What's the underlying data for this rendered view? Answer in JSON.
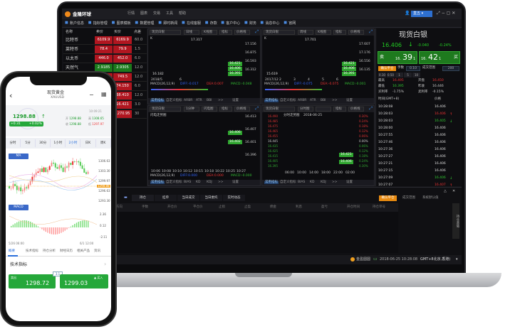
{
  "app": {
    "name": "金隆环球",
    "menu": [
      "行情",
      "图表",
      "交易",
      "工具",
      "帮助"
    ],
    "account": "直五"
  },
  "toolbar": [
    "账户信息",
    "指标管理",
    "图表模板",
    "数据管理",
    "即时新闻",
    "在线客服",
    "存款",
    "客户中心",
    "财务",
    "消息中心",
    "官网"
  ],
  "watchlist": {
    "headers": [
      "名称",
      "卖价",
      "买价",
      "点差"
    ],
    "rows": [
      {
        "name": "比特币",
        "sell": "6109.9",
        "buy": "6169.9",
        "spread": "60.0",
        "color": "red"
      },
      {
        "name": "莱特币",
        "sell": "78.4",
        "buy": "79.9",
        "spread": "1.5",
        "color": "red"
      },
      {
        "name": "以太币",
        "sell": "446.0",
        "buy": "452.0",
        "spread": "6.0",
        "color": "red"
      },
      {
        "name": "天然气",
        "sell": "2.9185",
        "buy": "2.9305",
        "spread": "12.0",
        "color": "green"
      },
      {
        "name": "",
        "sell": "",
        "buy": "749.5",
        "spread": "12.0",
        "color": "red"
      },
      {
        "name": "",
        "sell": "",
        "buy": "74.150",
        "spread": "6.0",
        "color": "red"
      },
      {
        "name": "",
        "sell": "",
        "buy": "68.410",
        "spread": "12.0",
        "color": "red"
      },
      {
        "name": "",
        "sell": "",
        "buy": "16.421",
        "spread": "3.0",
        "color": "red"
      },
      {
        "name": "",
        "sell": "",
        "buy": "1270.95",
        "spread": "30",
        "color": "red"
      }
    ]
  },
  "charts": [
    {
      "product": "现货白银",
      "period": "日线",
      "type": "K线图",
      "indicator": "指标",
      "line": "价格线",
      "label": "K",
      "high": "17.317",
      "low": "16.182",
      "axis": [
        "17.156",
        "16.875",
        "16.593",
        "16.312"
      ],
      "tags": [
        "16.421",
        "16.406",
        "16.391"
      ],
      "dates": [
        "2018/5",
        "6"
      ],
      "macd": "MACD(26,12,9)",
      "diff": "DIFF:-0.017",
      "dea": "DEA:0.007",
      "macdv": "MACD:-0.048",
      "tabs": [
        "常用指标",
        "自定义指标",
        "ARBR",
        "ATR",
        "BBI",
        ">>",
        "设置"
      ]
    },
    {
      "product": "现货白银",
      "period": "周线",
      "type": "K线图",
      "indicator": "指标",
      "line": "价格线",
      "label": "K",
      "high": "17.701",
      "low": "15.619",
      "axis": [
        "17.607",
        "17.176",
        "16.556",
        "16.135"
      ],
      "tags": [
        "16.421",
        "16.406",
        "16.391"
      ],
      "dates": [
        "2017/12",
        "2",
        "3",
        "4",
        "5",
        "6"
      ],
      "macd": "MACD(26,12,9)",
      "diff": "DIFF:-0.075",
      "dea": "DEA:-0.075",
      "macdv": "MACD:-0.001",
      "tabs": [
        "常用指标",
        "自定义指标",
        "ARBR",
        "ATR",
        "BBI",
        ">>",
        "设置"
      ]
    },
    {
      "product": "现货白银",
      "period": "1分钟",
      "type": "闪电图",
      "indicator": "指标",
      "line": "价格线",
      "label": "闪电走势图",
      "axis": [
        "16.413",
        "16.407",
        "16.401",
        "16.396"
      ],
      "tags": [
        "16.406",
        "16.402"
      ],
      "dates": [
        "10:06",
        "10:08",
        "10:10",
        "10:12",
        "10:15",
        "10:18",
        "10:22",
        "10:25",
        "10:27"
      ],
      "macd": "MACD(26,12,9)",
      "diff": "DIFF:0.000",
      "dea": "DEA:0.000",
      "macdv": "MACD:-0.000",
      "tabs": [
        "常用指标",
        "自定义指标",
        "BIAS",
        "KD",
        "KDJ",
        ">>",
        "设置"
      ]
    },
    {
      "product": "现货白银",
      "period": "分时图",
      "type": "",
      "indicator": "指标",
      "line": "价格线",
      "label": "分时走势图",
      "date": "2018-06-25",
      "axis": [
        "16.490",
        "16.485",
        "16.475",
        "16.465",
        "16.455",
        "16.445",
        "16.435",
        "16.425",
        "16.415",
        "16.405",
        "16.395"
      ],
      "pct": [
        "0.30%",
        "0.24%",
        "0.18%",
        "0.12%",
        "0.06%",
        "0.00%",
        "0.06%",
        "0.12%",
        "0.18%",
        "0.24%",
        "0.30%"
      ],
      "tags": [
        "16.421",
        "16.406"
      ],
      "dates": [
        "06:00",
        "10:00",
        "14:00",
        "18:00",
        "22:00",
        "02:00"
      ],
      "tabs": [
        "常用指标",
        "自定义指标",
        "BIAS",
        "KD",
        "KDJ",
        ">>",
        "设置"
      ]
    }
  ],
  "quote": {
    "title": "现货白银",
    "price": "16.406",
    "change": "-0.040",
    "pct": "-0.24%",
    "sell_label": "卖",
    "sell_pre": "16.",
    "sell_big": "39",
    "sell_sup": "1",
    "buy_label": "买",
    "buy_pre": "16.",
    "buy_big": "42",
    "buy_sup": "1",
    "close_btn": "确认平仓",
    "lots_label": "手数",
    "lots": "0.10",
    "range_label": "成交范围",
    "range": "200",
    "quick": [
      "0.10",
      "0.50",
      "1",
      "5",
      "10"
    ],
    "stats": [
      {
        "k": "最高",
        "v": "16.495"
      },
      {
        "k": "开盘",
        "v": "16.450"
      },
      {
        "k": "最低",
        "v": "16.395"
      },
      {
        "k": "昨收",
        "v": "16.446"
      },
      {
        "k": "买利率",
        "v": "-1.75%"
      },
      {
        "k": "卖利率",
        "v": "-0.15%"
      }
    ],
    "ticks_header": [
      "时间(GMT+8)",
      "价格"
    ],
    "ticks": [
      [
        "10:28:08",
        "16.406",
        ""
      ],
      [
        "10:28:03",
        "16.406",
        "up"
      ],
      [
        "10:28:03",
        "16.405",
        "down"
      ],
      [
        "10:28:00",
        "16.406",
        ""
      ],
      [
        "10:27:55",
        "16.406",
        ""
      ],
      [
        "10:27:46",
        "16.406",
        ""
      ],
      [
        "10:27:36",
        "16.406",
        ""
      ],
      [
        "10:27:27",
        "16.406",
        ""
      ],
      [
        "10:27:21",
        "16.406",
        ""
      ],
      [
        "10:27:15",
        "16.406",
        ""
      ],
      [
        "10:27:09",
        "16.406",
        "down"
      ],
      [
        "10:27:07",
        "16.407",
        "up"
      ]
    ]
  },
  "positions": {
    "tabs": [
      "持仓",
      "挂单",
      "当日成交",
      "当日委托",
      "实时动态"
    ],
    "right": [
      "确认平仓",
      "成交范围",
      "系统默认值"
    ],
    "headers": [
      "产品",
      "方向",
      "手数",
      "开仓价",
      "平仓价",
      "止损",
      "止盈",
      "佣金",
      "利息",
      "盈亏",
      "开仓时间",
      "持仓单号"
    ],
    "side": "持仓基础"
  },
  "status": {
    "service": "金盈圆圆",
    "datetime": "2018-06-25 10:28:08",
    "tz": "GMT+8北京,香港)"
  },
  "phone": {
    "title": "现货黄金",
    "symbol": "XAUUSD",
    "price": "1298.88",
    "chg": "+0.31",
    "pct": "+0.02%",
    "time": "10:09:21",
    "open_l": "开",
    "open": "1298.88",
    "high_l": "高",
    "high": "1308.65",
    "close_l": "收",
    "close": "1298.88",
    "low_l": "低",
    "low": "1297.97",
    "periods": [
      "分时",
      "5分",
      "30分",
      "1小时",
      "2小时",
      "日K",
      "周K"
    ],
    "active_period": "2小时",
    "ma_btn": "MA",
    "macd_btn": "MACD",
    "ma_axis": [
      "1306.63",
      "1303.30",
      "1299.97",
      "1296.63",
      "1293.30"
    ],
    "price_tag": "1298.88",
    "macd_axis": [
      "2.36",
      "0.12",
      "-2.11"
    ],
    "dates": [
      "5/26 06:00",
      "6/1 12:00"
    ],
    "tabs": [
      "概要",
      "技术指标",
      "持仓分析",
      "财经日历",
      "相关产品",
      "资讯"
    ],
    "section": "技术指标",
    "sell_l": "卖出",
    "sell": "1298.72",
    "spread": "3.1",
    "buy_l": "买入",
    "buy": "1299.03"
  }
}
